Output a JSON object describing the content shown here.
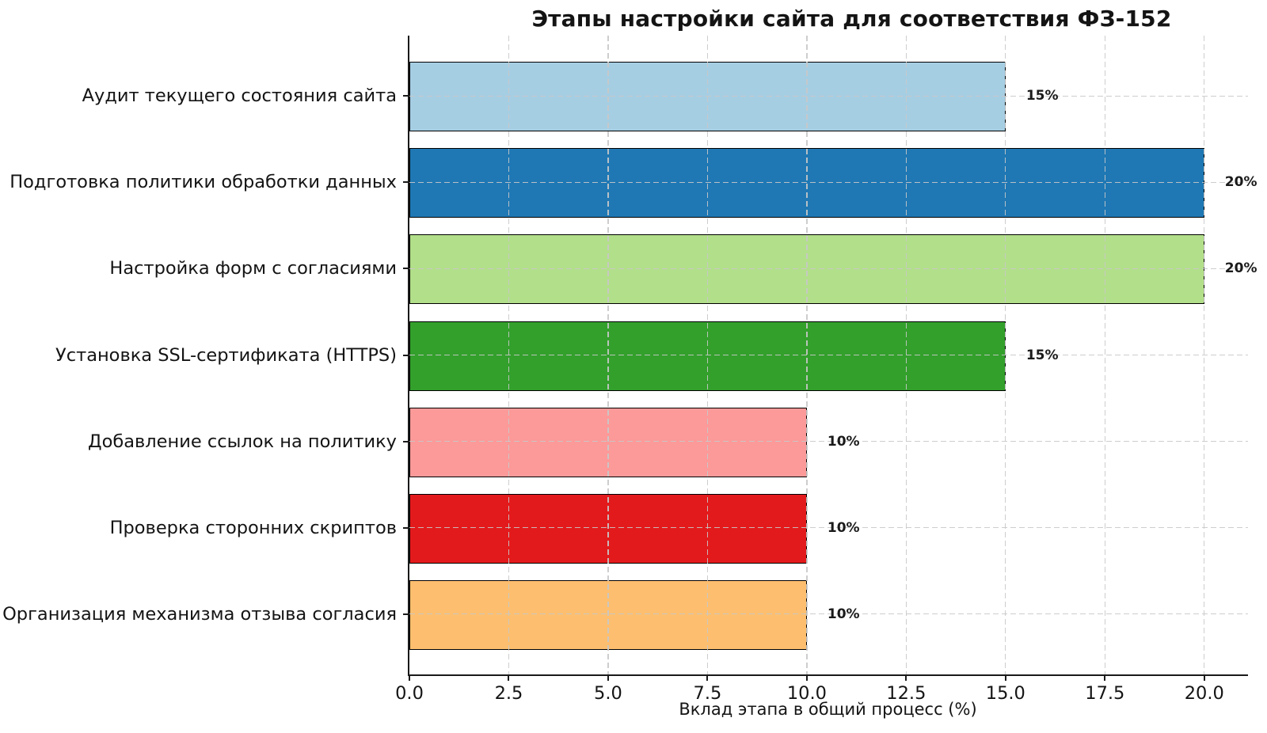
{
  "chart_data": {
    "type": "bar",
    "orientation": "horizontal",
    "title": "Этапы настройки сайта для соответствия ФЗ-152",
    "xlabel": "Вклад этапа в общий процесс (%)",
    "categories": [
      "Аудит текущего состояния сайта",
      "Подготовка политики обработки данных",
      "Настройка форм с согласиями",
      "Установка SSL-сертификата (HTTPS)",
      "Добавление ссылок на политику",
      "Проверка сторонних скриптов",
      "Организация механизма отзыва согласия"
    ],
    "values": [
      15,
      20,
      20,
      15,
      10,
      10,
      10
    ],
    "value_labels": [
      "15%",
      "20%",
      "20%",
      "15%",
      "10%",
      "10%",
      "10%"
    ],
    "bar_colors": [
      "#a6cee3",
      "#1f78b4",
      "#b2df8a",
      "#33a02c",
      "#fb9a99",
      "#e31a1c",
      "#fdbf6f"
    ],
    "bar_edge_color": "#000000",
    "xlim": [
      0,
      21.1
    ],
    "xticks": [
      0,
      2.5,
      5,
      7.5,
      10,
      12.5,
      15,
      17.5,
      20
    ],
    "xtick_labels": [
      "0.0",
      "2.5",
      "5.0",
      "7.5",
      "10.0",
      "12.5",
      "15.0",
      "17.5",
      "20.0"
    ],
    "grid": true,
    "grid_style": "dashed",
    "grid_color": "#c8c8c8",
    "grid_above_bars": true,
    "legend": false,
    "background": "#ffffff"
  }
}
